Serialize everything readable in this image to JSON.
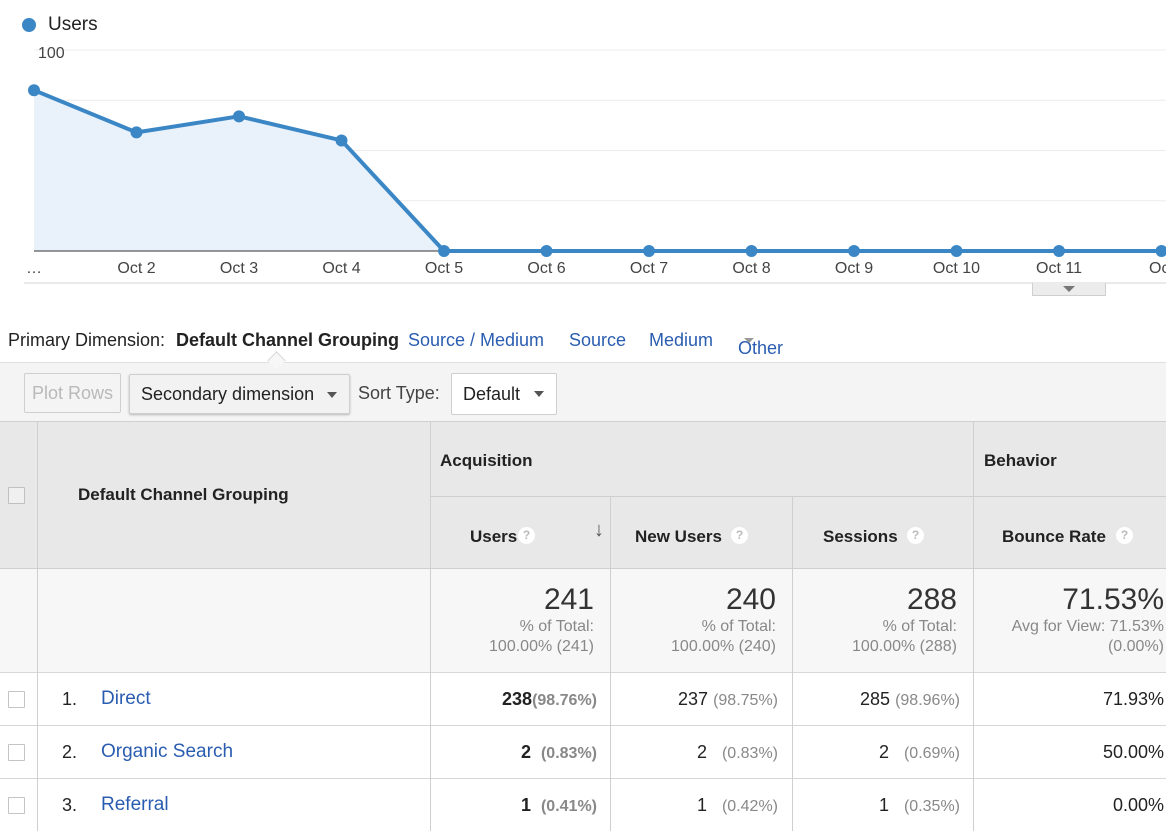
{
  "chart_data": {
    "type": "line",
    "series": [
      {
        "name": "Users",
        "values": [
          80,
          59,
          67,
          55,
          0,
          0,
          0,
          0,
          0,
          0,
          0,
          0
        ]
      }
    ],
    "categories": [
      "…",
      "Oct 2",
      "Oct 3",
      "Oct 4",
      "Oct 5",
      "Oct 6",
      "Oct 7",
      "Oct 8",
      "Oct 9",
      "Oct 10",
      "Oct 11",
      "Oct"
    ],
    "yticks": [
      100,
      50
    ],
    "ylim": [
      0,
      100
    ],
    "grid": true,
    "legend": "top-left",
    "color": "#3b87c6",
    "fill": "#e9f1fa"
  },
  "primary_dimension": {
    "caption": "Primary Dimension:",
    "active": "Default Channel Grouping",
    "links": [
      "Source / Medium",
      "Source",
      "Medium",
      "Other"
    ]
  },
  "toolbar": {
    "plot_rows": "Plot Rows",
    "secondary_dimension": "Secondary dimension",
    "sort_type_label": "Sort Type:",
    "sort_type_value": "Default"
  },
  "table": {
    "dimension_header": "Default Channel Grouping",
    "group_acquisition": "Acquisition",
    "group_behavior": "Behavior",
    "columns": [
      "Users",
      "New Users",
      "Sessions",
      "Bounce Rate"
    ],
    "help_glyph": "?",
    "sort_arrow": "↓",
    "totals": {
      "users": "241",
      "users_sub1": "% of Total:",
      "users_sub2": "100.00% (241)",
      "new_users": "240",
      "new_users_sub1": "% of Total:",
      "new_users_sub2": "100.00% (240)",
      "sessions": "288",
      "sessions_sub1": "% of Total:",
      "sessions_sub2": "100.00% (288)",
      "bounce_rate": "71.53%",
      "bounce_rate_sub1": "Avg for View: 71.53%",
      "bounce_rate_sub2": "(0.00%)"
    },
    "rows": [
      {
        "index": "1.",
        "channel": "Direct",
        "users": "238",
        "users_pct": "(98.76%)",
        "new_users": "237",
        "new_users_pct": "(98.75%)",
        "sessions": "285",
        "sessions_pct": "(98.96%)",
        "bounce_rate": "71.93%"
      },
      {
        "index": "2.",
        "channel": "Organic Search",
        "users": "2",
        "users_pct": "(0.83%)",
        "new_users": "2",
        "new_users_pct": "(0.83%)",
        "sessions": "2",
        "sessions_pct": "(0.69%)",
        "bounce_rate": "50.00%"
      },
      {
        "index": "3.",
        "channel": "Referral",
        "users": "1",
        "users_pct": "(0.41%)",
        "new_users": "1",
        "new_users_pct": "(0.42%)",
        "sessions": "1",
        "sessions_pct": "(0.35%)",
        "bounce_rate": "0.00%"
      }
    ]
  }
}
